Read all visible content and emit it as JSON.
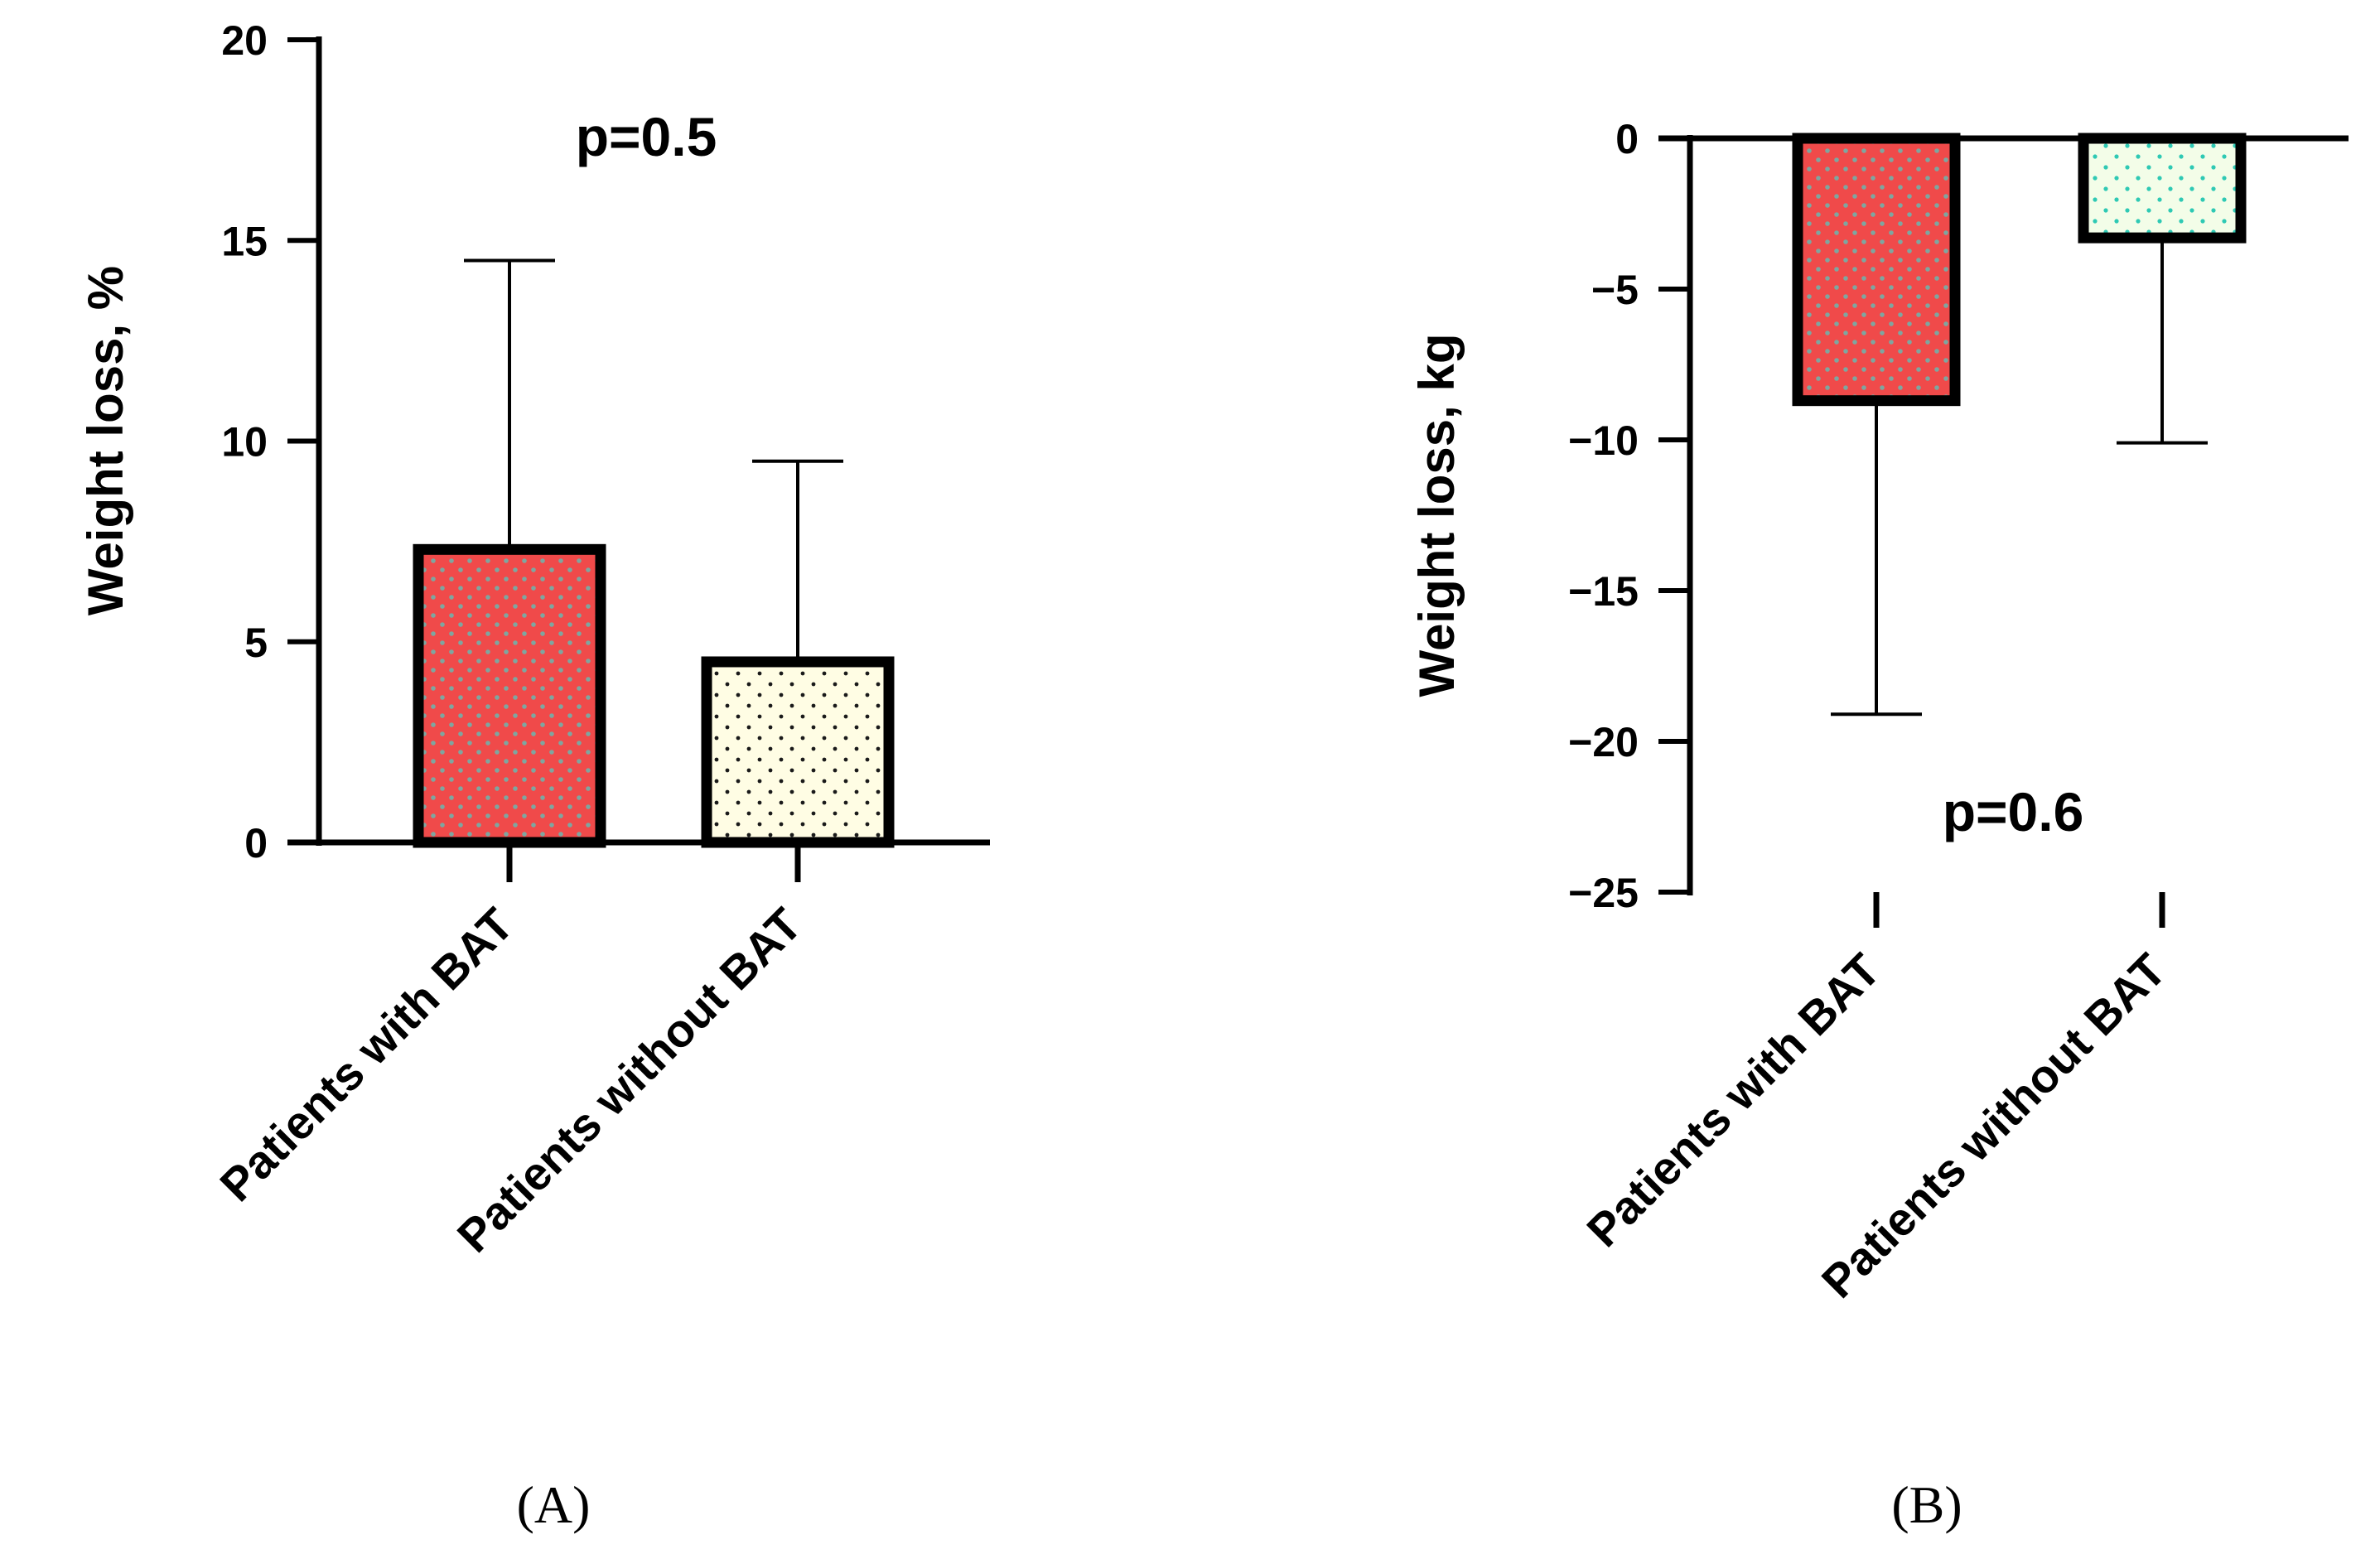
{
  "colors": {
    "with_bat_fill": "#f04a4a",
    "with_bat_dots": "#7ea6a0",
    "without_bat_fill_a": "#fffde4",
    "without_bat_dots_a": "#1a1a1a",
    "without_bat_fill_b": "#f3fde8",
    "without_bat_dots_b": "#2ec9b4",
    "axis": "#000000"
  },
  "chart_data": [
    {
      "type": "bar",
      "panel_label": "(A)",
      "categories": [
        "Patients with BAT",
        "Patients without BAT"
      ],
      "values": [
        7.3,
        4.5
      ],
      "error_upper": [
        14.5,
        9.5
      ],
      "ylabel": "Weight loss, %",
      "ylim": [
        0,
        20
      ],
      "yticks": [
        0,
        5,
        10,
        15,
        20
      ],
      "ytick_labels": [
        "0",
        "5",
        "10",
        "15",
        "20"
      ],
      "annotation": "p=0.5",
      "legend": "none",
      "grid": false
    },
    {
      "type": "bar",
      "panel_label": "(B)",
      "categories": [
        "Patients with BAT",
        "Patients without BAT"
      ],
      "values": [
        -8.7,
        -3.3
      ],
      "error_lower": [
        -19.1,
        -10.1
      ],
      "ylabel": "Weight loss, kg",
      "ylim": [
        -25,
        0
      ],
      "yticks": [
        0,
        -5,
        -10,
        -15,
        -20,
        -25
      ],
      "ytick_labels": [
        "0",
        "−5",
        "−10",
        "−15",
        "−20",
        "−25"
      ],
      "annotation": "p=0.6",
      "legend": "none",
      "grid": false
    }
  ]
}
